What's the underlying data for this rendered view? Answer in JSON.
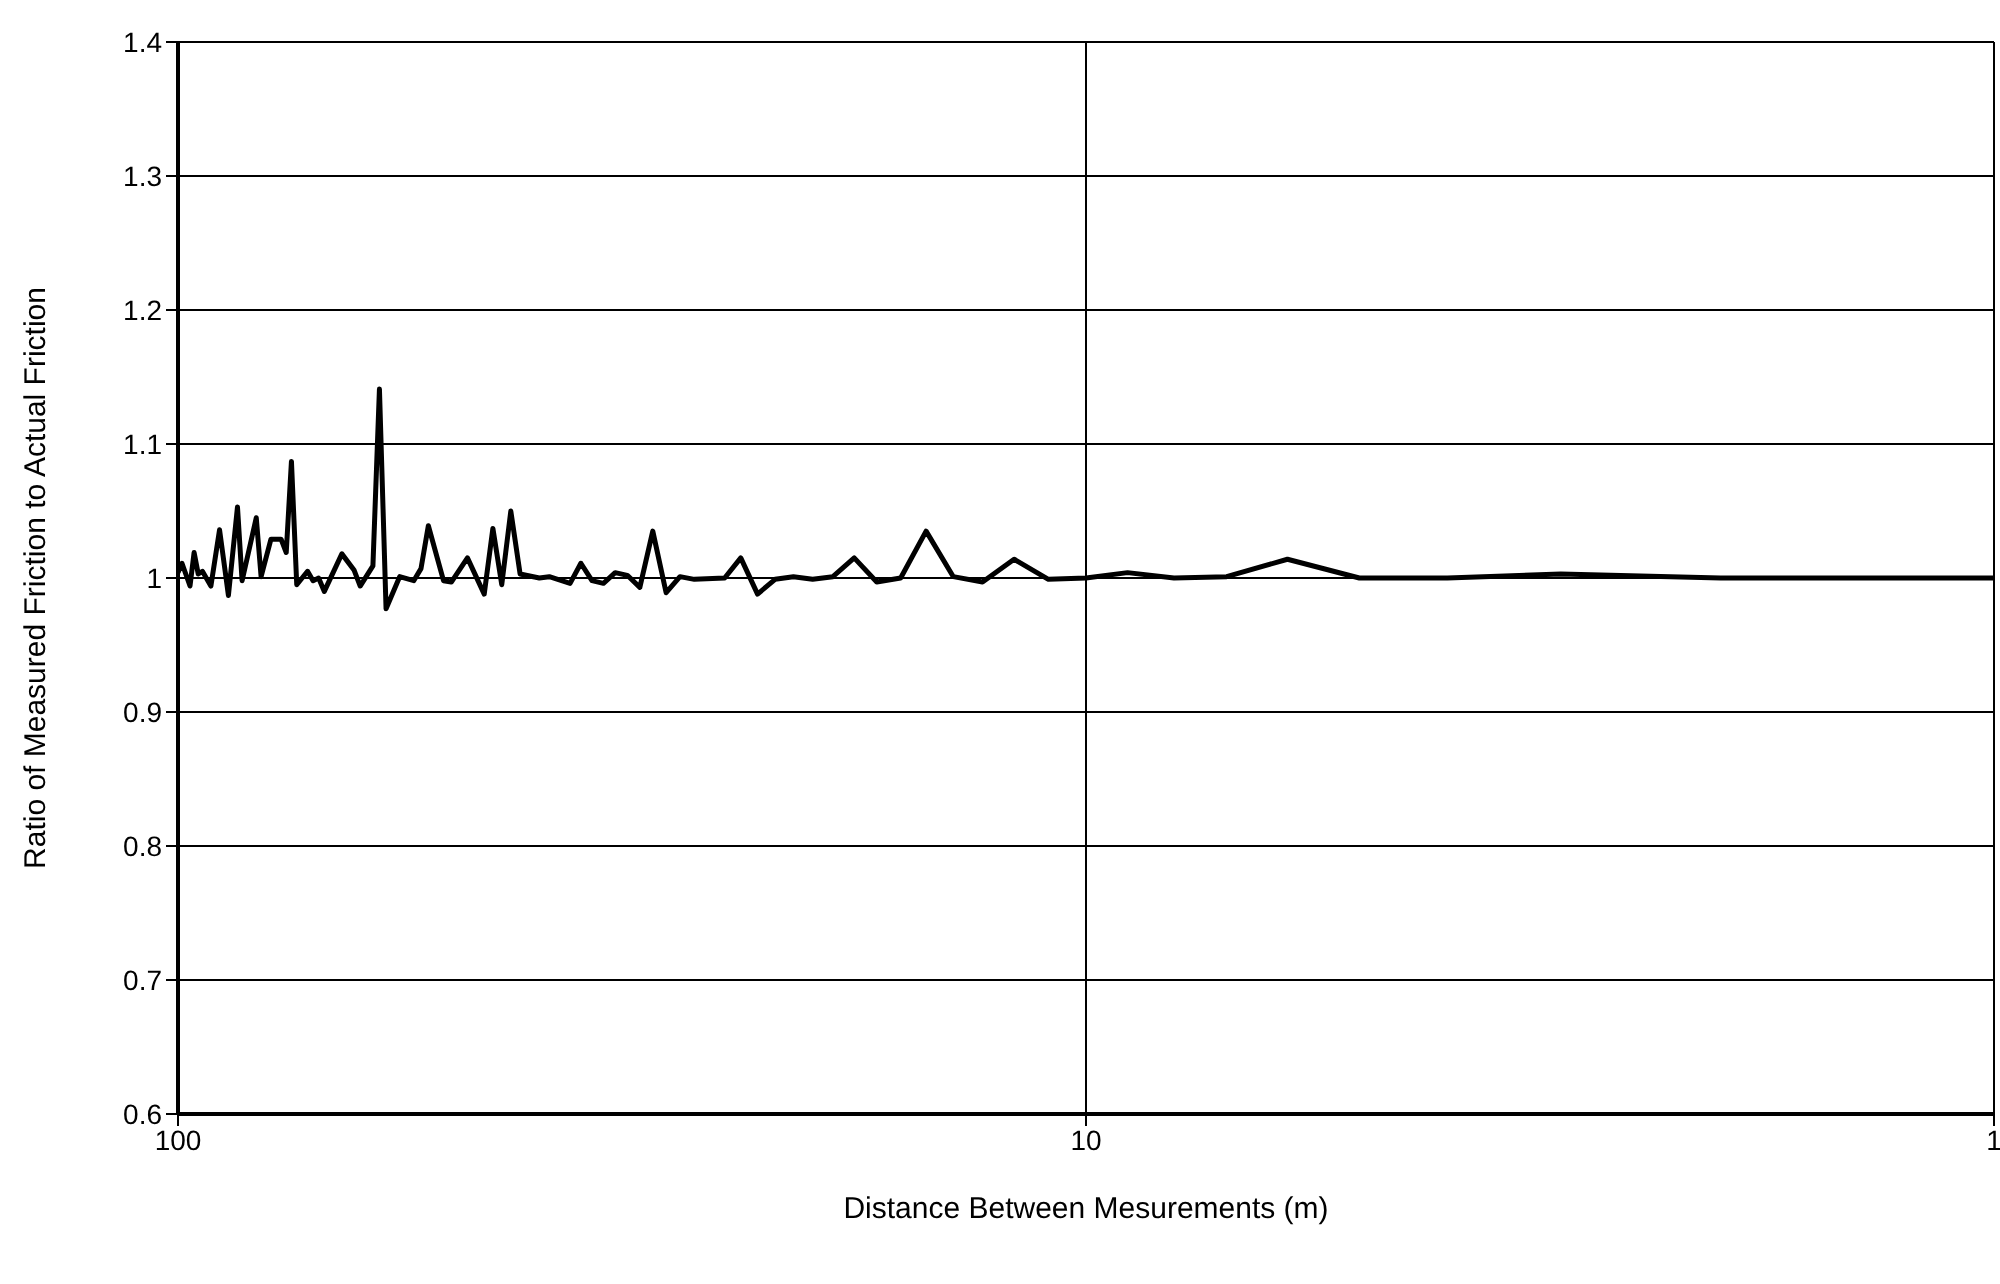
{
  "chart_data": {
    "type": "line",
    "xlabel": "Distance Between Mesurements (m)",
    "ylabel": "Ratio of Measured Friction to Actual Friction",
    "x": [
      100,
      99,
      97,
      96,
      95,
      94,
      92,
      90,
      88,
      86,
      85,
      82,
      81,
      79,
      77,
      76,
      75,
      74,
      72,
      71,
      70,
      69,
      66,
      64,
      63,
      61,
      60,
      59,
      57,
      55,
      54,
      53,
      51,
      50,
      48,
      46,
      45,
      44,
      43,
      42,
      40,
      39,
      37,
      36,
      35,
      34,
      33,
      32,
      31,
      30,
      29,
      28,
      27,
      25,
      24,
      23,
      22,
      21,
      20,
      19,
      18,
      17,
      16,
      15,
      14,
      13,
      12,
      11,
      10,
      9,
      8,
      7,
      6,
      5,
      4,
      3,
      2,
      1
    ],
    "series": [
      {
        "color": "#000000",
        "values": [
          1.004,
          1.011,
          0.994,
          1.019,
          1.003,
          1.005,
          0.994,
          1.036,
          0.987,
          1.053,
          0.998,
          1.045,
          1.001,
          1.029,
          1.029,
          1.019,
          1.087,
          0.995,
          1.005,
          0.998,
          1.0,
          0.99,
          1.018,
          1.006,
          0.994,
          1.009,
          1.141,
          0.977,
          1.001,
          0.998,
          1.007,
          1.039,
          0.998,
          0.997,
          1.015,
          0.988,
          1.037,
          0.995,
          1.05,
          1.003,
          1.0,
          1.001,
          0.996,
          1.011,
          0.998,
          0.996,
          1.004,
          1.002,
          0.993,
          1.035,
          0.989,
          1.001,
          0.999,
          1.0,
          1.015,
          0.988,
          0.999,
          1.001,
          0.999,
          1.001,
          1.015,
          0.997,
          1.0,
          1.035,
          1.001,
          0.997,
          1.014,
          0.999,
          1.0,
          1.004,
          1.0,
          1.001,
          1.014,
          1.0,
          1.0,
          1.003,
          1.0,
          1.0
        ]
      }
    ],
    "log": "x",
    "xlim": [
      100,
      1
    ],
    "xticks": [
      100,
      10,
      1
    ],
    "ylim": [
      0.6,
      1.4
    ],
    "yticks": [
      0.6,
      0.7,
      0.8,
      0.9,
      1,
      1.1,
      1.2,
      1.3,
      1.4
    ],
    "grid": true,
    "marker": "none",
    "line_style": "solid"
  }
}
